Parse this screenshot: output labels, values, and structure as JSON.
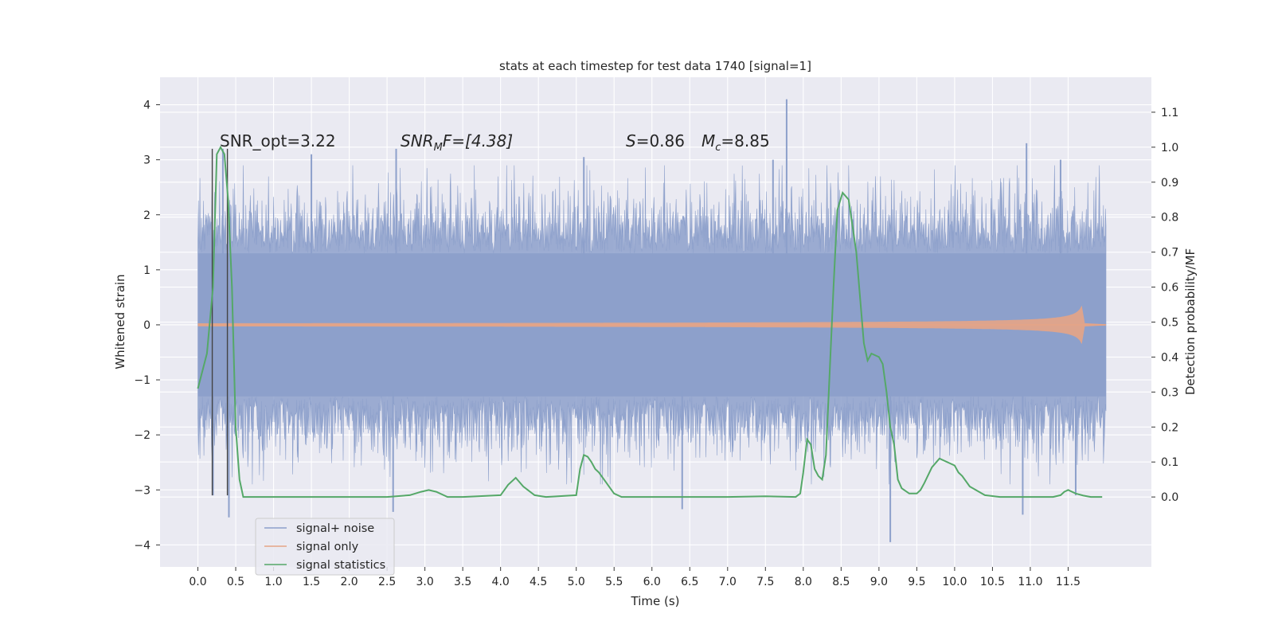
{
  "chart_data": {
    "type": "line",
    "title": "stats at each timestep for test data 1740 [signal=1]",
    "xlabel": "Time (s)",
    "ylabel": "Whitened strain",
    "y2label": "Detection probability/MF",
    "xlim": [
      -0.5,
      12.6
    ],
    "ylim": [
      -4.4,
      4.5
    ],
    "y2lim": [
      -0.2,
      1.2
    ],
    "x_ticks": [
      0.0,
      0.5,
      1.0,
      1.5,
      2.0,
      2.5,
      3.0,
      3.5,
      4.0,
      4.5,
      5.0,
      5.5,
      6.0,
      6.5,
      7.0,
      7.5,
      8.0,
      8.5,
      9.0,
      9.5,
      10.0,
      10.5,
      11.0,
      11.5
    ],
    "x_tick_labels": [
      "0.0",
      "0.5",
      "1.0",
      "1.5",
      "2.0",
      "2.5",
      "3.0",
      "3.5",
      "4.0",
      "4.5",
      "5.0",
      "5.5",
      "6.0",
      "6.5",
      "7.0",
      "7.5",
      "8.0",
      "8.5",
      "9.0",
      "9.5",
      "10.0",
      "10.5",
      "11.0",
      "11.5"
    ],
    "y_ticks": [
      4,
      3,
      2,
      1,
      0,
      -1,
      -2,
      -3,
      -4
    ],
    "y_tick_labels": [
      "4",
      "3",
      "2",
      "1",
      "0",
      "−1",
      "−2",
      "−3",
      "−4"
    ],
    "y2_ticks": [
      1.1,
      1.0,
      0.9,
      0.8,
      0.7,
      0.6,
      0.5,
      0.4,
      0.3,
      0.2,
      0.1,
      0.0
    ],
    "y2_tick_labels": [
      "1.1",
      "1.0",
      "0.9",
      "0.8",
      "0.7",
      "0.6",
      "0.5",
      "0.4",
      "0.3",
      "0.2",
      "0.1",
      "0.0"
    ],
    "grid": true,
    "legend_position": "lower-left",
    "annotations": {
      "snr_opt": "SNR_opt=3.22",
      "snr_mf": "SNR",
      "snr_mf_sub": "M",
      "snr_mf_rest": "F=[4.38]",
      "s_label": "S",
      "s_value": "=0.86",
      "mc_label": "M",
      "mc_sub": "c",
      "mc_value": "=8.85"
    },
    "vlines": [
      0.19,
      0.39
    ],
    "series": [
      {
        "name": "signal+ noise",
        "color": "#8da0cb",
        "description": "whitened strain, noise band roughly ±1.3 with spikes to ±3.2",
        "x_range": [
          0.0,
          12.0
        ],
        "peaks": [
          {
            "x": 0.33,
            "y": 3.2
          },
          {
            "x": 1.5,
            "y": 3.1
          },
          {
            "x": 2.62,
            "y": 3.2
          },
          {
            "x": 5.1,
            "y": 3.05
          },
          {
            "x": 7.78,
            "y": 4.1
          },
          {
            "x": 7.6,
            "y": 3.0
          },
          {
            "x": 10.95,
            "y": 3.3
          },
          {
            "x": 11.4,
            "y": 3.0
          }
        ],
        "troughs": [
          {
            "x": 0.2,
            "y": -3.1
          },
          {
            "x": 0.41,
            "y": -3.5
          },
          {
            "x": 2.58,
            "y": -3.4
          },
          {
            "x": 6.4,
            "y": -3.35
          },
          {
            "x": 9.15,
            "y": -3.95
          },
          {
            "x": 10.9,
            "y": -3.45
          },
          {
            "x": 11.6,
            "y": -3.1
          }
        ]
      },
      {
        "name": "signal only",
        "color": "#e5a486",
        "description": "chirp growing toward merger near 11.68 s",
        "x_range": [
          0.0,
          12.0
        ],
        "max_amplitude": 0.35,
        "merger_time": 11.68
      },
      {
        "name": "signal statistics",
        "color": "#55a868",
        "axis": "right",
        "x": [
          0.0,
          0.12,
          0.2,
          0.25,
          0.3,
          0.35,
          0.4,
          0.45,
          0.5,
          0.55,
          0.6,
          0.7,
          1.0,
          2.5,
          2.8,
          2.95,
          3.05,
          3.15,
          3.3,
          3.5,
          4.0,
          4.1,
          4.2,
          4.3,
          4.45,
          4.6,
          5.0,
          5.05,
          5.1,
          5.15,
          5.2,
          5.25,
          5.3,
          5.4,
          5.5,
          5.6,
          6.0,
          7.0,
          7.5,
          7.9,
          7.96,
          8.0,
          8.05,
          8.1,
          8.15,
          8.2,
          8.25,
          8.3,
          8.4,
          8.45,
          8.52,
          8.6,
          8.7,
          8.8,
          8.85,
          8.9,
          9.0,
          9.05,
          9.1,
          9.15,
          9.2,
          9.25,
          9.3,
          9.4,
          9.5,
          9.55,
          9.6,
          9.7,
          9.8,
          10.0,
          10.05,
          10.1,
          10.2,
          10.4,
          10.6,
          11.0,
          11.3,
          11.4,
          11.45,
          11.5,
          11.6,
          11.7,
          11.8,
          11.95
        ],
        "values": [
          0.31,
          0.41,
          0.6,
          0.98,
          1.0,
          0.98,
          0.85,
          0.6,
          0.2,
          0.05,
          0.0,
          0.0,
          0.0,
          0.0,
          0.005,
          0.015,
          0.02,
          0.015,
          0.0,
          0.0,
          0.005,
          0.035,
          0.055,
          0.03,
          0.005,
          0.0,
          0.005,
          0.08,
          0.12,
          0.115,
          0.1,
          0.08,
          0.07,
          0.04,
          0.01,
          0.0,
          0.0,
          0.0,
          0.002,
          0.0,
          0.01,
          0.07,
          0.165,
          0.15,
          0.08,
          0.06,
          0.05,
          0.12,
          0.6,
          0.82,
          0.87,
          0.85,
          0.7,
          0.44,
          0.39,
          0.41,
          0.4,
          0.38,
          0.3,
          0.2,
          0.15,
          0.05,
          0.025,
          0.01,
          0.01,
          0.02,
          0.04,
          0.085,
          0.11,
          0.09,
          0.07,
          0.06,
          0.03,
          0.005,
          0.0,
          0.0,
          0.0,
          0.005,
          0.015,
          0.02,
          0.01,
          0.004,
          0.0,
          0.0
        ]
      }
    ]
  }
}
